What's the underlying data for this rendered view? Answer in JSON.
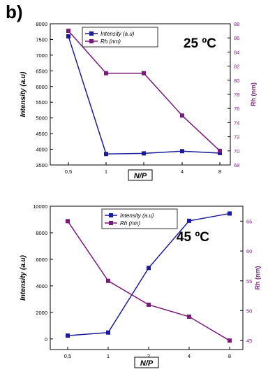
{
  "figure": {
    "panel_label": "b)"
  },
  "colors": {
    "intensity": "#1a1a9a",
    "rh": "#7a1a7a",
    "axis": "#000000"
  },
  "chart_data": [
    {
      "type": "line",
      "annotation": "25 ºC",
      "categories": [
        "0,5",
        "1",
        "2",
        "4",
        "8"
      ],
      "xlabel": "N/P",
      "ylabel_left": "Intensity (a.u)",
      "ylabel_right": "Rh (nm)",
      "ylim_left": [
        3500,
        8000
      ],
      "yticks_left": [
        3500,
        4000,
        4500,
        5000,
        5500,
        6000,
        6500,
        7000,
        7500,
        8000
      ],
      "ylim_right": [
        68,
        88
      ],
      "yticks_right": [
        68,
        70,
        72,
        74,
        76,
        78,
        80,
        82,
        84,
        86,
        88
      ],
      "legend_position": "top-left",
      "series": [
        {
          "name": "Intensity (a.u)",
          "axis": "left",
          "marker": "square",
          "values": [
            7600,
            3850,
            3870,
            3940,
            3880
          ]
        },
        {
          "name": "Rh (nm)",
          "axis": "right",
          "marker": "square",
          "values": [
            87,
            81,
            81,
            75,
            70
          ]
        }
      ]
    },
    {
      "type": "line",
      "annotation": "45 ºC",
      "categories": [
        "0,5",
        "1",
        "2",
        "4",
        "8"
      ],
      "xlabel": "N/P",
      "ylabel_left": "Intensity (a.u)",
      "ylabel_right": "Rh (nm)",
      "ylim_left": [
        -800,
        10000
      ],
      "yticks_left": [
        0,
        2000,
        4000,
        6000,
        8000,
        10000
      ],
      "ylim_right": [
        43.5,
        67.5
      ],
      "yticks_right": [
        45,
        50,
        55,
        60,
        65
      ],
      "legend_position": "top-center",
      "series": [
        {
          "name": "Intensity (a.u)",
          "axis": "left",
          "marker": "square",
          "values": [
            250,
            480,
            5350,
            8900,
            9450
          ]
        },
        {
          "name": "Rh (nm)",
          "axis": "right",
          "marker": "square",
          "values": [
            65,
            55,
            51,
            49,
            45
          ]
        }
      ]
    }
  ]
}
